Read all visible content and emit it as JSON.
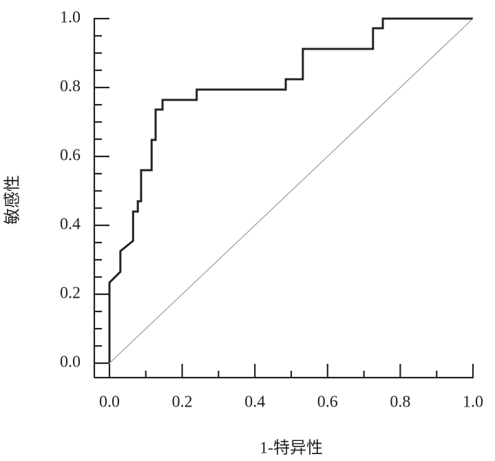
{
  "chart_data": {
    "type": "line",
    "x_label": "1-特异性",
    "y_label": "敏感性",
    "xlim": [
      0,
      1
    ],
    "ylim": [
      0,
      1
    ],
    "xticks": [
      {
        "value": 0,
        "label": "0.0"
      },
      {
        "value": 0.2,
        "label": "0.2"
      },
      {
        "value": 0.4,
        "label": "0.4"
      },
      {
        "value": 0.6,
        "label": "0.6"
      },
      {
        "value": 0.8,
        "label": "0.8"
      },
      {
        "value": 1,
        "label": "1.0"
      }
    ],
    "yticks": [
      {
        "value": 0,
        "label": "0.0"
      },
      {
        "value": 0.2,
        "label": "0.2"
      },
      {
        "value": 0.4,
        "label": "0.4"
      },
      {
        "value": 0.6,
        "label": "0.6"
      },
      {
        "value": 0.8,
        "label": "0.8"
      },
      {
        "value": 1,
        "label": "1.0"
      }
    ],
    "x_minor_ticks": [
      0.1,
      0.3,
      0.5,
      0.7,
      0.9
    ],
    "y_minor_ticks": [
      0.05,
      0.1,
      0.15,
      0.25,
      0.3,
      0.35,
      0.45,
      0.5,
      0.55,
      0.65,
      0.7,
      0.75,
      0.85,
      0.9,
      0.95
    ],
    "series": [
      {
        "color": "#222222",
        "width": 3,
        "x": [
          0,
          0,
          0.03,
          0.03,
          0.065,
          0.065,
          0.078,
          0.078,
          0.087,
          0.087,
          0.116,
          0.116,
          0.127,
          0.127,
          0.146,
          0.146,
          0.24,
          0.24,
          0.485,
          0.485,
          0.532,
          0.532,
          0.725,
          0.725,
          0.752,
          0.752,
          1
        ],
        "values": [
          0,
          0.234,
          0.265,
          0.325,
          0.355,
          0.44,
          0.44,
          0.47,
          0.47,
          0.56,
          0.56,
          0.648,
          0.648,
          0.736,
          0.736,
          0.764,
          0.764,
          0.794,
          0.794,
          0.824,
          0.824,
          0.912,
          0.912,
          0.972,
          0.972,
          1,
          1
        ]
      },
      {
        "color": "#999999",
        "width": 1.2,
        "x": [
          0,
          1
        ],
        "values": [
          0,
          1
        ]
      }
    ]
  }
}
